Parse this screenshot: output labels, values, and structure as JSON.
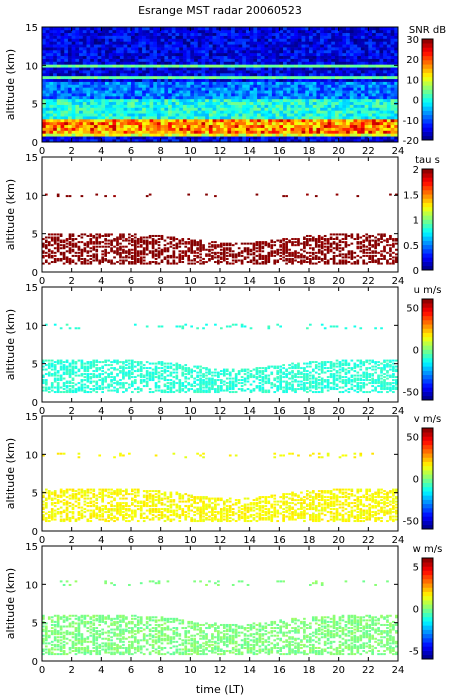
{
  "chart_data": {
    "type": "heatmap",
    "title": "Esrange MST radar 20060523",
    "xlabel": "time (LT)",
    "xlim": [
      0,
      24
    ],
    "xticks": [
      "0",
      "2",
      "4",
      "6",
      "8",
      "10",
      "12",
      "14",
      "16",
      "18",
      "20",
      "22",
      "24"
    ],
    "panels": [
      {
        "ylabel": "altitude (km)",
        "ylim": [
          0,
          15
        ],
        "yticks": [
          "0",
          "5",
          "10",
          "15"
        ],
        "colorbar": {
          "title": "SNR dB",
          "range": [
            -20,
            30
          ],
          "ticks": [
            "30",
            "20",
            "10",
            "0",
            "-10",
            "-20"
          ]
        },
        "field": "snr",
        "layers": [
          {
            "alt": [
              0.6,
              1.0
            ],
            "value": 10
          },
          {
            "alt": [
              1.0,
              3.0
            ],
            "value": 10
          },
          {
            "alt": [
              3.0,
              5.5
            ],
            "value": 0
          },
          {
            "alt": [
              5.5,
              8.0
            ],
            "value": -8
          },
          {
            "alt": [
              8.0,
              15.0
            ],
            "value": -15
          }
        ]
      },
      {
        "ylabel": "altitude (km)",
        "ylim": [
          0,
          15
        ],
        "yticks": [
          "0",
          "5",
          "10",
          "15"
        ],
        "colorbar": {
          "title": "tau s",
          "range": [
            0,
            2
          ],
          "ticks": [
            "2",
            "1.5",
            "1",
            "0.5",
            "0"
          ]
        },
        "field": "tau",
        "layers": [
          {
            "alt": [
              1.0,
              5.0
            ],
            "value": 2.0
          },
          {
            "alt": [
              9.8,
              10.2
            ],
            "value": 2.0
          }
        ]
      },
      {
        "ylabel": "altitude (km)",
        "ylim": [
          0,
          15
        ],
        "yticks": [
          "0",
          "5",
          "10",
          "15"
        ],
        "colorbar": {
          "title": "u m/s",
          "range": [
            -60,
            60
          ],
          "ticks": [
            "50",
            "0",
            "-50"
          ]
        },
        "field": "u",
        "layers": [
          {
            "alt": [
              1.2,
              5.5
            ],
            "value": -10
          },
          {
            "alt": [
              9.5,
              10.2
            ],
            "value": -10
          }
        ]
      },
      {
        "ylabel": "altitude (km)",
        "ylim": [
          0,
          15
        ],
        "yticks": [
          "0",
          "5",
          "10",
          "15"
        ],
        "colorbar": {
          "title": "v m/s",
          "range": [
            -60,
            60
          ],
          "ticks": [
            "50",
            "0",
            "-50"
          ]
        },
        "field": "v",
        "layers": [
          {
            "alt": [
              1.2,
              5.5
            ],
            "value": 15
          },
          {
            "alt": [
              9.5,
              10.2
            ],
            "value": 15
          }
        ]
      },
      {
        "ylabel": "altitude (km)",
        "ylim": [
          0,
          15
        ],
        "yticks": [
          "0",
          "5",
          "10",
          "15"
        ],
        "colorbar": {
          "title": "w m/s",
          "range": [
            -6,
            6
          ],
          "ticks": [
            "5",
            "0",
            "-5"
          ]
        },
        "field": "w",
        "layers": [
          {
            "alt": [
              0.8,
              6.0
            ],
            "value": 0
          },
          {
            "alt": [
              9.8,
              10.5
            ],
            "value": 0
          }
        ]
      }
    ]
  }
}
